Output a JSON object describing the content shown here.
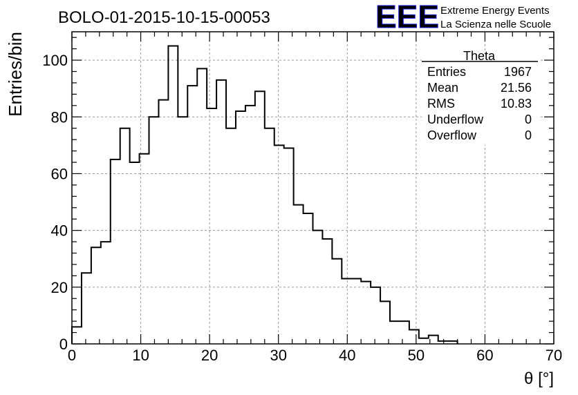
{
  "header": {
    "run_id": "BOLO-01-2015-10-15-00053",
    "logo_text": "EEE",
    "logo_line1": "Extreme Energy Events",
    "logo_line2": "La Scienza nelle Scuole",
    "logo_color": "#1a1adc"
  },
  "stats_box": {
    "title": "Theta",
    "rows": [
      {
        "label": "Entries",
        "value": "1967"
      },
      {
        "label": "Mean",
        "value": "21.56"
      },
      {
        "label": "RMS",
        "value": "10.83"
      },
      {
        "label": "Underflow",
        "value": "0"
      },
      {
        "label": "Overflow",
        "value": "0"
      }
    ]
  },
  "chart_data": {
    "type": "histogram",
    "xlabel": "θ [°]",
    "ylabel": "Entries/bin",
    "xlim": [
      0,
      70
    ],
    "ylim": [
      0,
      110
    ],
    "x_ticks": [
      0,
      10,
      20,
      30,
      40,
      50,
      60,
      70
    ],
    "y_ticks": [
      0,
      20,
      40,
      60,
      80,
      100
    ],
    "grid": true,
    "bin_width": 1.4,
    "bin_edges_start": 0,
    "values": [
      6,
      25,
      34,
      36,
      65,
      76,
      64,
      67,
      80,
      86,
      105,
      80,
      91,
      97,
      83,
      93,
      76,
      82,
      84,
      89,
      76,
      70,
      69,
      49,
      46,
      40,
      37,
      30,
      23,
      23,
      22,
      20,
      15,
      8,
      8,
      5,
      2,
      3,
      1,
      1
    ]
  }
}
